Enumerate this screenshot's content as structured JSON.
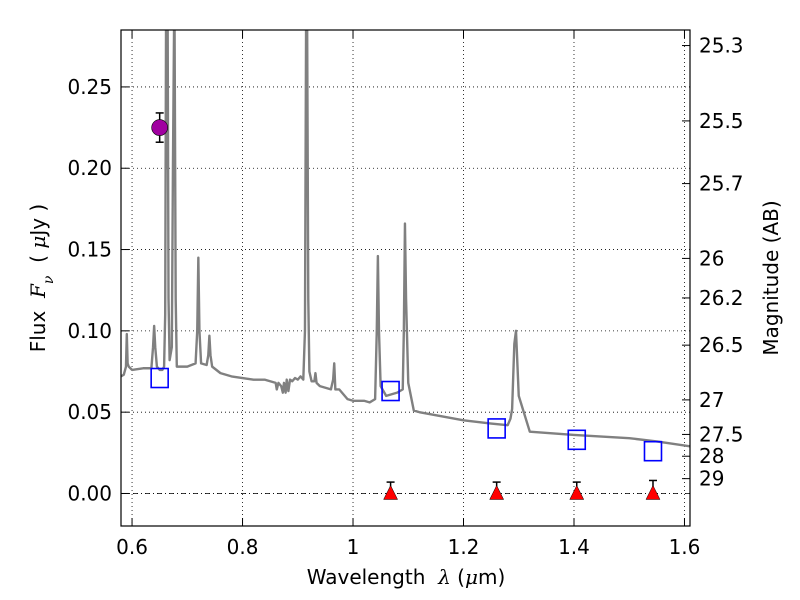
{
  "chart_data": {
    "type": "line",
    "title": "",
    "xlabel": "Wavelength  λ (μm)",
    "xlabel_parts": {
      "prefix": "Wavelength",
      "symbol": "λ",
      "open": " (",
      "unit_symbol": "μ",
      "unit": "m)"
    },
    "ylabel": "Flux  F_ν  ( μJy )",
    "ylabel_parts": {
      "prefix": "Flux",
      "symbol": "F",
      "subscript": "ν",
      "open": "( ",
      "unit_symbol": "μ",
      "unit": "Jy )"
    },
    "ylabel_right": "Magnitude (AB)",
    "xlim": [
      0.58,
      1.61
    ],
    "ylim": [
      -0.02,
      0.285
    ],
    "grid": true,
    "xticks": [
      {
        "value": 0.6,
        "label": "0.6"
      },
      {
        "value": 0.8,
        "label": "0.8"
      },
      {
        "value": 1.0,
        "label": "1"
      },
      {
        "value": 1.2,
        "label": "1.2"
      },
      {
        "value": 1.4,
        "label": "1.4"
      },
      {
        "value": 1.6,
        "label": "1.6"
      }
    ],
    "yticks": [
      {
        "value": 0.0,
        "label": "0.00"
      },
      {
        "value": 0.05,
        "label": "0.05"
      },
      {
        "value": 0.1,
        "label": "0.10"
      },
      {
        "value": 0.15,
        "label": "0.15"
      },
      {
        "value": 0.2,
        "label": "0.20"
      },
      {
        "value": 0.25,
        "label": "0.25"
      }
    ],
    "right_ticks": [
      {
        "value": 25.3,
        "label": "25.3"
      },
      {
        "value": 25.5,
        "label": "25.5"
      },
      {
        "value": 25.7,
        "label": "25.7"
      },
      {
        "value": 26,
        "label": "26"
      },
      {
        "value": 26.2,
        "label": "26.2"
      },
      {
        "value": 26.5,
        "label": "26.5"
      },
      {
        "value": 27,
        "label": "27"
      },
      {
        "value": 27.5,
        "label": "27.5"
      },
      {
        "value": 28,
        "label": "28"
      },
      {
        "value": 29,
        "label": "29"
      }
    ],
    "series": [
      {
        "name": "model spectrum",
        "kind": "line",
        "color": "#808080",
        "x": [
          0.58,
          0.585,
          0.589,
          0.5905,
          0.592,
          0.594,
          0.6,
          0.62,
          0.635,
          0.638,
          0.64,
          0.642,
          0.645,
          0.65,
          0.655,
          0.658,
          0.66,
          0.6615,
          0.663,
          0.6645,
          0.666,
          0.668,
          0.672,
          0.674,
          0.676,
          0.677,
          0.679,
          0.681,
          0.7,
          0.715,
          0.718,
          0.72,
          0.722,
          0.725,
          0.735,
          0.738,
          0.74,
          0.742,
          0.745,
          0.76,
          0.78,
          0.8,
          0.82,
          0.84,
          0.85,
          0.86,
          0.862,
          0.865,
          0.87,
          0.873,
          0.875,
          0.878,
          0.88,
          0.883,
          0.886,
          0.89,
          0.895,
          0.9,
          0.905,
          0.91,
          0.913,
          0.915,
          0.917,
          0.919,
          0.921,
          0.925,
          0.93,
          0.932,
          0.934,
          0.94,
          0.95,
          0.96,
          0.964,
          0.966,
          0.968,
          0.975,
          0.99,
          1.0,
          1.02,
          1.03,
          1.04,
          1.043,
          1.045,
          1.047,
          1.05,
          1.06,
          1.08,
          1.09,
          1.092,
          1.094,
          1.096,
          1.1,
          1.11,
          1.12,
          1.2,
          1.25,
          1.28,
          1.285,
          1.288,
          1.292,
          1.295,
          1.3,
          1.32,
          1.36,
          1.4,
          1.5,
          1.55,
          1.61
        ],
        "y": [
          0.072,
          0.073,
          0.078,
          0.098,
          0.08,
          0.078,
          0.076,
          0.077,
          0.077,
          0.09,
          0.103,
          0.09,
          0.078,
          0.076,
          0.076,
          0.078,
          0.11,
          0.285,
          0.2,
          0.285,
          0.12,
          0.082,
          0.09,
          0.2,
          0.285,
          0.285,
          0.12,
          0.078,
          0.078,
          0.08,
          0.1,
          0.145,
          0.1,
          0.08,
          0.079,
          0.085,
          0.097,
          0.085,
          0.078,
          0.074,
          0.072,
          0.071,
          0.07,
          0.07,
          0.069,
          0.068,
          0.064,
          0.068,
          0.066,
          0.062,
          0.068,
          0.062,
          0.07,
          0.063,
          0.07,
          0.069,
          0.071,
          0.07,
          0.072,
          0.07,
          0.1,
          0.285,
          0.285,
          0.12,
          0.075,
          0.069,
          0.069,
          0.074,
          0.068,
          0.066,
          0.065,
          0.064,
          0.07,
          0.08,
          0.064,
          0.064,
          0.058,
          0.057,
          0.057,
          0.056,
          0.058,
          0.1,
          0.146,
          0.1,
          0.066,
          0.06,
          0.062,
          0.064,
          0.1,
          0.166,
          0.12,
          0.068,
          0.051,
          0.05,
          0.045,
          0.043,
          0.042,
          0.046,
          0.052,
          0.092,
          0.1,
          0.06,
          0.038,
          0.037,
          0.036,
          0.034,
          0.032,
          0.029
        ]
      },
      {
        "name": "model synthetic photometry",
        "kind": "open-square",
        "color": "#0000ff",
        "x": [
          0.65,
          1.068,
          1.26,
          1.405,
          1.543
        ],
        "y": [
          0.071,
          0.063,
          0.04,
          0.033,
          0.026
        ]
      },
      {
        "name": "detection",
        "kind": "filled-circle",
        "color": "#a000a0",
        "x": [
          0.65
        ],
        "y": [
          0.225
        ],
        "yerr": [
          0.009
        ]
      },
      {
        "name": "upper limits",
        "kind": "filled-triangle",
        "color": "#ff0000",
        "x": [
          1.068,
          1.26,
          1.405,
          1.543
        ],
        "y": [
          0.0,
          0.0,
          0.0,
          0.0
        ],
        "yerr_upper": [
          0.007,
          0.007,
          0.007,
          0.008
        ]
      }
    ]
  }
}
